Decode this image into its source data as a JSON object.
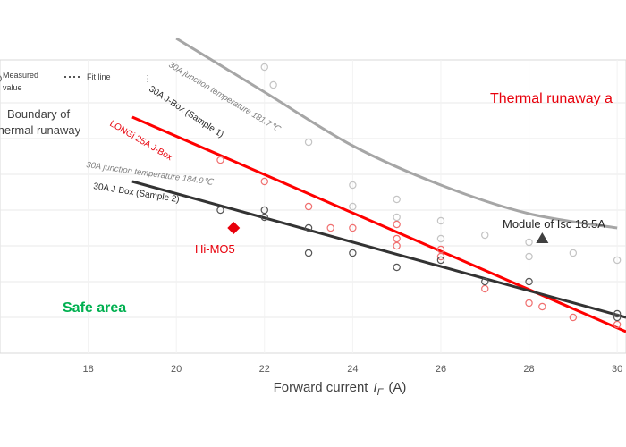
{
  "chart_data": {
    "type": "scatter",
    "xlabel": "Forward current",
    "xlabel_symbol": "I",
    "xlabel_subscript": "F",
    "xlabel_unit": "(A)",
    "xlim": [
      16,
      30.2
    ],
    "ylim": [
      0,
      8.2
    ],
    "x_ticks": [
      18,
      20,
      22,
      24,
      26,
      28,
      30
    ],
    "x_tick_labels": [
      "18",
      "20",
      "22",
      "24",
      "26",
      "28",
      "30"
    ],
    "y_gridlines": [
      1,
      2,
      3,
      4,
      5,
      6,
      7
    ],
    "grid": true,
    "legend": {
      "placement": "top-left",
      "entries": [
        {
          "symbol": "circle",
          "label_line1": "Measured",
          "label_line2": "value"
        },
        {
          "symbol": "dotted",
          "label": "Fit line"
        }
      ]
    },
    "series": [
      {
        "name": "30A junction temperature 181.7℃ / 30A J-Box (Sample 1)",
        "color": "#a6a6a6",
        "marker_color": "#c4c4c4",
        "fit_curve": [
          [
            20,
            8.8
          ],
          [
            22,
            7.3
          ],
          [
            24,
            5.8
          ],
          [
            26,
            4.7
          ],
          [
            28,
            3.9
          ],
          [
            30,
            3.5
          ]
        ],
        "points": [
          [
            22.0,
            8.0
          ],
          [
            22.2,
            7.5
          ],
          [
            23.0,
            5.9
          ],
          [
            24.0,
            4.7
          ],
          [
            24.0,
            4.1
          ],
          [
            25.0,
            4.3
          ],
          [
            25.0,
            3.8
          ],
          [
            26.0,
            3.7
          ],
          [
            26.0,
            3.2
          ],
          [
            27.0,
            3.3
          ],
          [
            28.0,
            3.1
          ],
          [
            28.0,
            2.7
          ],
          [
            29.0,
            2.8
          ],
          [
            30.0,
            2.6
          ]
        ]
      },
      {
        "name": "LONGi 25A J-Box",
        "color": "#ff0000",
        "marker_color": "#f07070",
        "fit_line": [
          [
            19,
            6.6
          ],
          [
            30.2,
            0.6
          ]
        ],
        "points": [
          [
            21.0,
            5.4
          ],
          [
            22.0,
            4.8
          ],
          [
            23.0,
            4.1
          ],
          [
            23.5,
            3.5
          ],
          [
            24.0,
            3.5
          ],
          [
            25.0,
            3.6
          ],
          [
            25.0,
            3.2
          ],
          [
            25.0,
            3.0
          ],
          [
            26.0,
            2.9
          ],
          [
            26.0,
            2.7
          ],
          [
            27.0,
            1.8
          ],
          [
            28.0,
            1.4
          ],
          [
            28.3,
            1.3
          ],
          [
            29.0,
            1.0
          ],
          [
            30.0,
            0.8
          ]
        ]
      },
      {
        "name": "30A junction temperature 184.9℃ / 30A J-Box (Sample 2)",
        "color": "#333333",
        "marker_color": "#555555",
        "fit_line": [
          [
            19,
            4.8
          ],
          [
            30.2,
            1.0
          ]
        ],
        "points": [
          [
            21.0,
            4.0
          ],
          [
            22.0,
            4.0
          ],
          [
            22.0,
            3.8
          ],
          [
            23.0,
            3.5
          ],
          [
            23.0,
            2.8
          ],
          [
            24.0,
            2.8
          ],
          [
            25.0,
            2.4
          ],
          [
            26.0,
            2.6
          ],
          [
            27.0,
            2.0
          ],
          [
            28.0,
            2.0
          ],
          [
            30.0,
            1.1
          ],
          [
            30.0,
            1.0
          ]
        ]
      }
    ],
    "special_points": [
      {
        "label": "Hi-MO5",
        "x": 21.3,
        "y": 3.5,
        "marker": "diamond",
        "color": "#e8000b"
      },
      {
        "label": "Module of Isc 18.5A",
        "x": 28.3,
        "y": 3.2,
        "marker": "triangle",
        "color": "#404040"
      }
    ],
    "annotations": {
      "boundary": "Boundary of\nthermal runaway",
      "thermal": "Thermal runaway a",
      "safe": "Safe area",
      "sample1_temp": "30A junction temperature 181.7℃",
      "sample1_name": "30A J-Box (Sample 1)",
      "longi": "LONGi 25A J-Box",
      "sample2_temp": "30A junction temperature 184.9℃",
      "sample2_name": "30A J-Box (Sample 2)"
    },
    "colors": {
      "thermal_text": "#e8000b",
      "safe_text": "#00b050",
      "hi_mo5": "#e8000b",
      "grid": "#e8e8e8",
      "axis_text": "#404040"
    }
  }
}
